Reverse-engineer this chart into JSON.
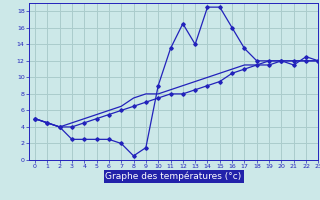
{
  "xlabel": "Graphe des températures (°c)",
  "background_color": "#cce8e8",
  "grid_color": "#aacccc",
  "line_color": "#2222bb",
  "hours": [
    0,
    1,
    2,
    3,
    4,
    5,
    6,
    7,
    8,
    9,
    10,
    11,
    12,
    13,
    14,
    15,
    16,
    17,
    18,
    19,
    20,
    21,
    22,
    23
  ],
  "line1": [
    5.0,
    4.5,
    4.0,
    2.5,
    2.5,
    2.5,
    2.5,
    2.0,
    0.5,
    1.5,
    9.0,
    13.5,
    16.5,
    14.0,
    18.5,
    18.5,
    16.0,
    13.5,
    12.0,
    12.0,
    12.0,
    11.5,
    12.5,
    12.0
  ],
  "line2": [
    5.0,
    4.5,
    4.0,
    4.0,
    4.5,
    5.0,
    5.5,
    6.0,
    6.5,
    7.0,
    7.5,
    8.0,
    8.0,
    8.5,
    9.0,
    9.5,
    10.5,
    11.0,
    11.5,
    11.5,
    12.0,
    12.0,
    12.0,
    12.0
  ],
  "line3": [
    5.0,
    4.5,
    4.0,
    4.5,
    5.0,
    5.5,
    6.0,
    6.5,
    7.5,
    8.0,
    8.0,
    8.5,
    9.0,
    9.5,
    10.0,
    10.5,
    11.0,
    11.5,
    11.5,
    12.0,
    12.0,
    12.0,
    12.0,
    12.0
  ],
  "ylim": [
    0,
    19
  ],
  "xlim": [
    -0.5,
    23
  ],
  "yticks": [
    0,
    2,
    4,
    6,
    8,
    10,
    12,
    14,
    16,
    18
  ],
  "xticks": [
    0,
    1,
    2,
    3,
    4,
    5,
    6,
    7,
    8,
    9,
    10,
    11,
    12,
    13,
    14,
    15,
    16,
    17,
    18,
    19,
    20,
    21,
    22,
    23
  ],
  "xlabel_bg": "#2222aa",
  "xlabel_fg": "#ffffff",
  "xlabel_fontsize": 6.5
}
